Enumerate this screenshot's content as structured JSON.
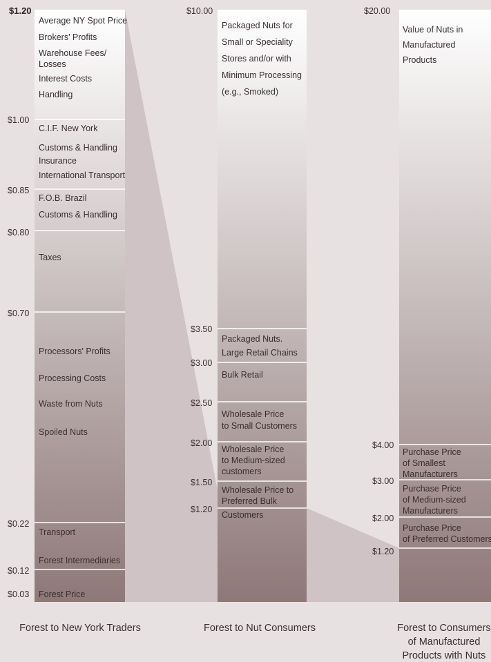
{
  "columns": [
    {
      "id": "ny",
      "caption": [
        "Forest to New York Traders"
      ],
      "top_label": "$1.20",
      "price_ticks": [
        "$1.00",
        "$0.85",
        "$0.80",
        "$0.70",
        "$0.22",
        "$0.12",
        "$0.03"
      ],
      "labels": [
        [
          "Average NY Spot Price"
        ],
        [
          "Brokers' Profits"
        ],
        [
          "Warehouse Fees/",
          "Losses"
        ],
        [
          "Interest Costs"
        ],
        [
          "Handling"
        ],
        [
          "C.I.F. New York"
        ],
        [
          "Customs & Handling",
          "Insurance",
          "International Transport"
        ],
        [
          "F.O.B. Brazil"
        ],
        [
          "Customs & Handling"
        ],
        [
          "Taxes"
        ],
        [
          "Processors' Profits"
        ],
        [
          "Processing Costs"
        ],
        [
          "Waste from Nuts"
        ],
        [
          "Spoiled Nuts"
        ],
        [
          "Transport"
        ],
        [
          "Forest Intermediaries"
        ],
        [
          "Forest Price"
        ]
      ]
    },
    {
      "id": "consumers",
      "caption": [
        "Forest to Nut Consumers"
      ],
      "top_label": "$10.00",
      "price_ticks": [
        "$3.50",
        "$3.00",
        "$2.50",
        "$2.00",
        "$1.50",
        "$1.20"
      ],
      "labels": [
        [
          "Packaged Nuts for",
          "Small or Speciality",
          "Stores and/or with",
          "Minimum Processing",
          "(e.g., Smoked)"
        ],
        [
          "Packaged Nuts.",
          "Large Retail Chains"
        ],
        [
          "Bulk Retail"
        ],
        [
          "Wholesale Price",
          "to Small Customers"
        ],
        [
          "Wholesale Price",
          "to Medium-sized",
          "customers"
        ],
        [
          "Wholesale Price to",
          "Preferred Bulk",
          "Customers"
        ]
      ]
    },
    {
      "id": "manufactured",
      "caption": [
        "Forest to Consumers",
        "of Manufactured",
        "Products with Nuts"
      ],
      "top_label": "$20.00",
      "price_ticks": [
        "$4.00",
        "$3.00",
        "$2.00",
        "$1.20"
      ],
      "labels": [
        [
          "Value of Nuts in",
          "Manufactured",
          "Products"
        ],
        [
          "Purchase Price",
          "of  Smallest",
          "Manufacturers"
        ],
        [
          "Purchase Price",
          "of Medium-sized",
          "Manufacturers"
        ],
        [
          "Purchase Price",
          "of Preferred Customers"
        ]
      ]
    }
  ],
  "colors": {
    "background": "#e8e1e2",
    "bar_top": "#ffffff",
    "bar_bottom": "#8e7878",
    "connector": "#cfc3c5",
    "text": "#3a2f32",
    "divider": "#ffffff"
  }
}
